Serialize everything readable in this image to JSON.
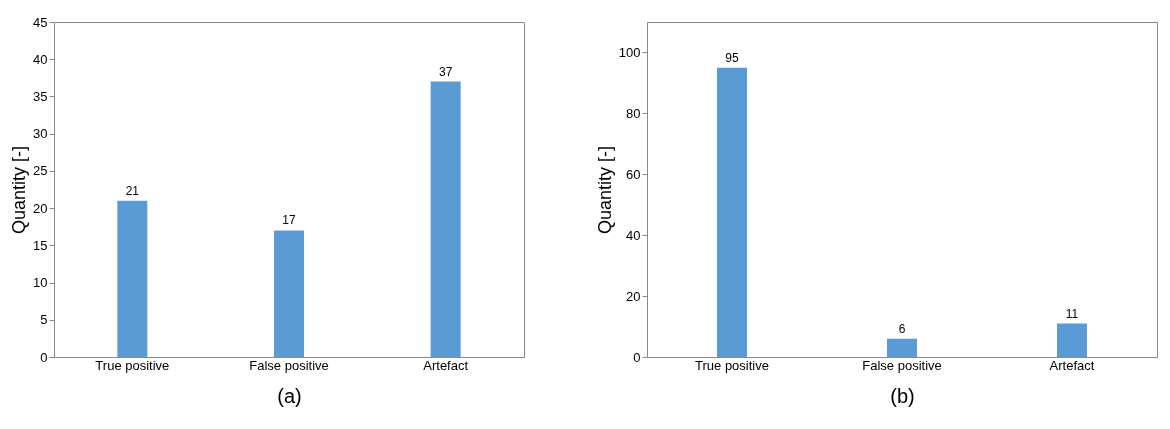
{
  "chart_data": [
    {
      "type": "bar",
      "categories": [
        "True positive",
        "False positive",
        "Artefact"
      ],
      "values": [
        21,
        17,
        37
      ],
      "color": "#5b9bd5",
      "ylabel": "Quantity [-]",
      "xlabel": "(a)",
      "ylim": [
        0,
        45
      ],
      "yticks": [
        0,
        5,
        10,
        15,
        20,
        25,
        30,
        35,
        40,
        45
      ],
      "data_labels": true,
      "grid": false,
      "legend": false
    },
    {
      "type": "bar",
      "categories": [
        "True positive",
        "False positive",
        "Artefact"
      ],
      "values": [
        95,
        6,
        11
      ],
      "color": "#5b9bd5",
      "ylabel": "Quantity [-]",
      "xlabel": "(b)",
      "ylim": [
        0,
        110
      ],
      "yticks": [
        0,
        20,
        40,
        60,
        80,
        100
      ],
      "data_labels": true,
      "grid": false,
      "legend": false
    }
  ]
}
